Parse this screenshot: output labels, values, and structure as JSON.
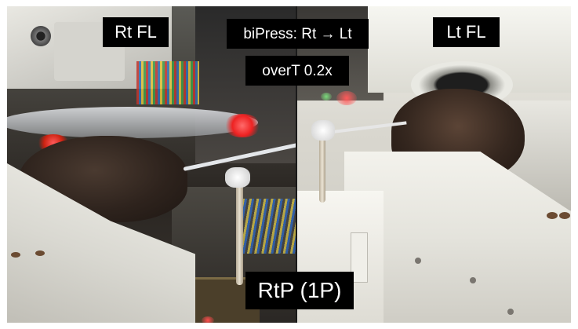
{
  "captions": {
    "left_view": "Rt FL",
    "right_view": "Lt FL",
    "condition": "biPress: Rt → Lt",
    "speed": "overT 0.2x",
    "trial": "RtP (1P)"
  }
}
